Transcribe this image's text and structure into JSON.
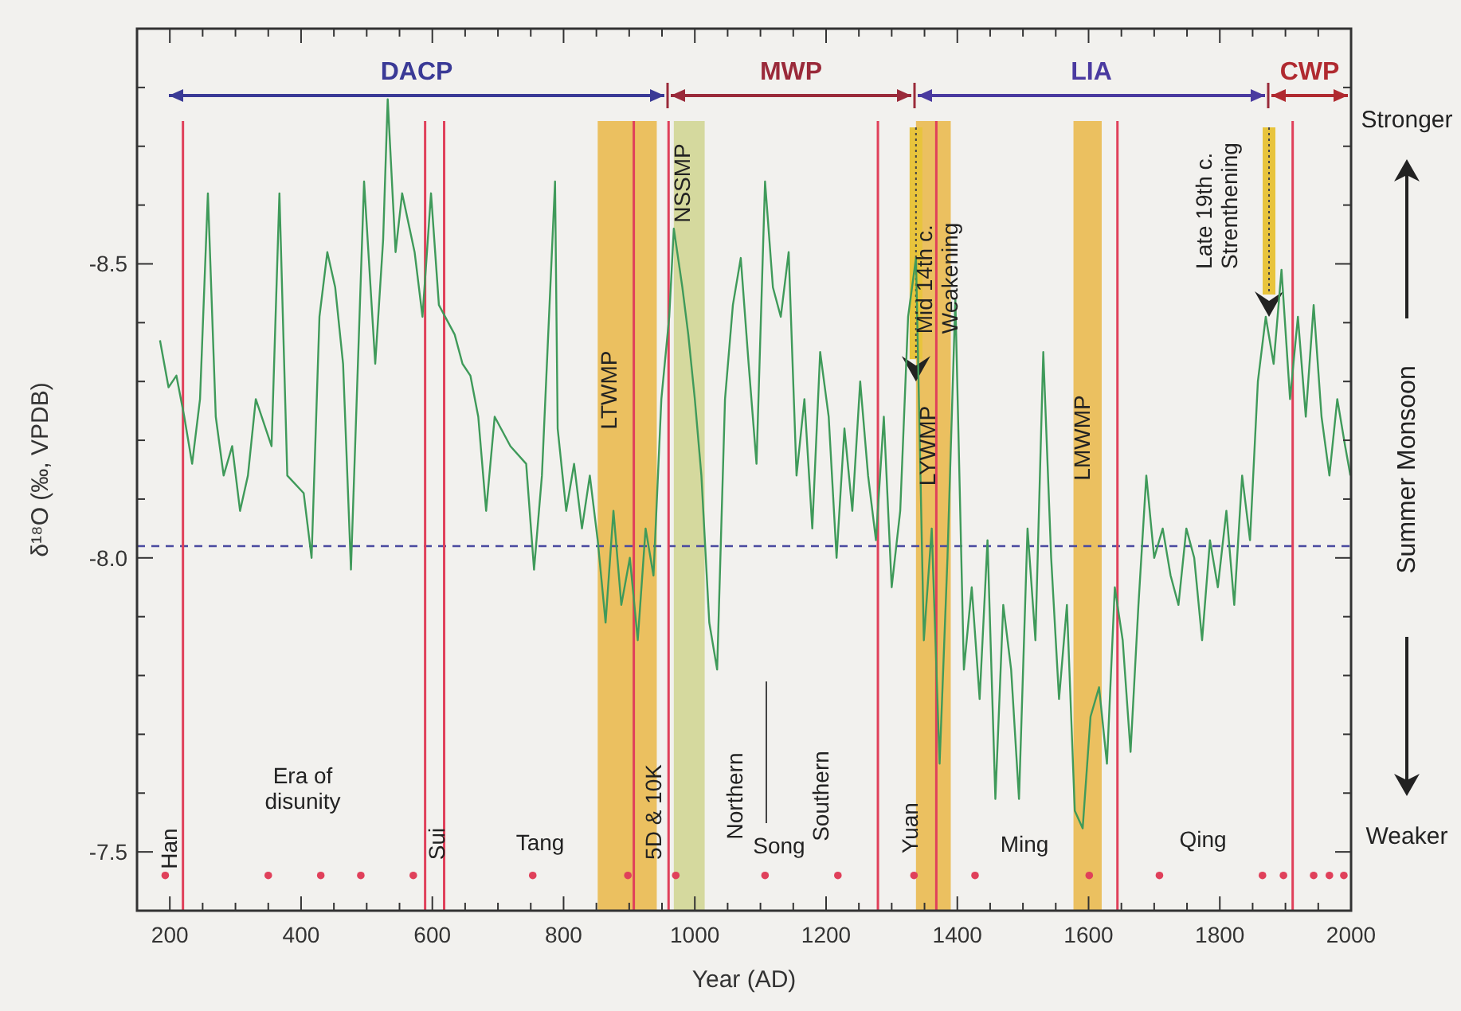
{
  "chart_data": {
    "type": "line",
    "xlabel": "Year (AD)",
    "ylabel": "δ¹⁸O (‰, VPDB)",
    "y2label": "Summer Monsoon",
    "xlim": [
      150,
      2000
    ],
    "ylim": [
      -7.4,
      -8.9
    ],
    "xticks": [
      {
        "value": 150,
        "label": null
      },
      200,
      {
        "value": 250,
        "label": null
      },
      {
        "value": 300,
        "label": null
      },
      {
        "value": 350,
        "label": null
      },
      400,
      {
        "value": 450,
        "label": null
      },
      {
        "value": 500,
        "label": null
      },
      {
        "value": 550,
        "label": null
      },
      600,
      {
        "value": 650,
        "label": null
      },
      {
        "value": 700,
        "label": null
      },
      {
        "value": 750,
        "label": null
      },
      800,
      {
        "value": 850,
        "label": null
      },
      {
        "value": 900,
        "label": null
      },
      {
        "value": 950,
        "label": null
      },
      1000,
      {
        "value": 1050,
        "label": null
      },
      {
        "value": 1100,
        "label": null
      },
      {
        "value": 1150,
        "label": null
      },
      1200,
      {
        "value": 1250,
        "label": null
      },
      {
        "value": 1300,
        "label": null
      },
      {
        "value": 1350,
        "label": null
      },
      1400,
      {
        "value": 1450,
        "label": null
      },
      {
        "value": 1500,
        "label": null
      },
      {
        "value": 1550,
        "label": null
      },
      1600,
      {
        "value": 1650,
        "label": null
      },
      {
        "value": 1700,
        "label": null
      },
      {
        "value": 1750,
        "label": null
      },
      1800,
      {
        "value": 1850,
        "label": null
      },
      {
        "value": 1900,
        "label": null
      },
      {
        "value": 1950,
        "label": null
      },
      2000
    ],
    "yticks": [
      {
        "value": -8.8,
        "label": null
      },
      {
        "value": -8.7,
        "label": null
      },
      {
        "value": -8.6,
        "label": null
      },
      -8.5,
      {
        "value": -8.4,
        "label": null
      },
      {
        "value": -8.3,
        "label": null
      },
      {
        "value": -8.2,
        "label": null
      },
      {
        "value": -8.1,
        "label": null
      },
      {
        "value": -8,
        "label": "-8.0"
      },
      {
        "value": -7.9,
        "label": null
      },
      {
        "value": -7.8,
        "label": null
      },
      {
        "value": -7.7,
        "label": null
      },
      {
        "value": -7.6,
        "label": null
      },
      -7.5,
      {
        "value": -7.4,
        "label": null
      }
    ],
    "series": [
      {
        "color": "#3f9a5a",
        "x": [
          185,
          198,
          210,
          222,
          234,
          246,
          258,
          270,
          282,
          295,
          307,
          319,
          331,
          355,
          367,
          379,
          404,
          416,
          428,
          440,
          452,
          464,
          476,
          496,
          513,
          525,
          532,
          544,
          554,
          573,
          585,
          598,
          610,
          634,
          646,
          658,
          670,
          682,
          695,
          719,
          743,
          755,
          767,
          787,
          791,
          804,
          816,
          828,
          840,
          852,
          864,
          876,
          888,
          901,
          913,
          925,
          937,
          949,
          961,
          968,
          981,
          990,
          1000,
          1010,
          1022,
          1034,
          1046,
          1058,
          1070,
          1082,
          1094,
          1107,
          1119,
          1131,
          1143,
          1155,
          1167,
          1179,
          1191,
          1204,
          1216,
          1228,
          1240,
          1252,
          1264,
          1276,
          1288,
          1300,
          1313,
          1325,
          1337,
          1349,
          1361,
          1373,
          1385,
          1397,
          1410,
          1422,
          1434,
          1446,
          1458,
          1470,
          1482,
          1494,
          1507,
          1519,
          1531,
          1543,
          1555,
          1567,
          1579,
          1591,
          1603,
          1616,
          1628,
          1640,
          1652,
          1664,
          1676,
          1688,
          1700,
          1713,
          1725,
          1737,
          1749,
          1761,
          1773,
          1785,
          1797,
          1810,
          1822,
          1834,
          1846,
          1858,
          1870,
          1882,
          1894,
          1907,
          1919,
          1931,
          1943,
          1955,
          1967,
          1979,
          1991,
          1999
        ],
        "values": [
          -8.37,
          -8.29,
          -8.31,
          -8.24,
          -8.16,
          -8.27,
          -8.62,
          -8.24,
          -8.14,
          -8.19,
          -8.08,
          -8.14,
          -8.27,
          -8.19,
          -8.62,
          -8.14,
          -8.11,
          -8.0,
          -8.41,
          -8.52,
          -8.46,
          -8.33,
          -7.98,
          -8.64,
          -8.33,
          -8.54,
          -8.78,
          -8.52,
          -8.62,
          -8.52,
          -8.41,
          -8.62,
          -8.43,
          -8.38,
          -8.33,
          -8.31,
          -8.24,
          -8.08,
          -8.24,
          -8.19,
          -8.16,
          -7.98,
          -8.14,
          -8.64,
          -8.22,
          -8.08,
          -8.16,
          -8.05,
          -8.14,
          -8.03,
          -7.89,
          -8.08,
          -7.92,
          -8.0,
          -7.86,
          -8.05,
          -7.97,
          -8.27,
          -8.41,
          -8.56,
          -8.46,
          -8.38,
          -8.27,
          -8.14,
          -7.89,
          -7.81,
          -8.27,
          -8.43,
          -8.51,
          -8.33,
          -8.16,
          -8.64,
          -8.46,
          -8.41,
          -8.52,
          -8.14,
          -8.27,
          -8.05,
          -8.35,
          -8.24,
          -8.0,
          -8.22,
          -8.08,
          -8.3,
          -8.14,
          -8.03,
          -8.24,
          -7.95,
          -8.08,
          -8.41,
          -8.51,
          -7.86,
          -8.05,
          -7.65,
          -8.0,
          -8.44,
          -7.81,
          -7.95,
          -7.76,
          -8.03,
          -7.59,
          -7.92,
          -7.81,
          -7.59,
          -8.05,
          -7.86,
          -8.35,
          -8.0,
          -7.76,
          -7.92,
          -7.57,
          -7.54,
          -7.73,
          -7.78,
          -7.65,
          -7.95,
          -7.86,
          -7.67,
          -7.92,
          -8.14,
          -8.0,
          -8.05,
          -7.97,
          -7.92,
          -8.05,
          -8.0,
          -7.86,
          -8.03,
          -7.95,
          -8.08,
          -7.92,
          -8.14,
          -8.03,
          -8.3,
          -8.41,
          -8.33,
          -8.49,
          -8.27,
          -8.41,
          -8.24,
          -8.43,
          -8.24,
          -8.14,
          -8.27,
          -8.19,
          -8.14
        ]
      },
      {
        "type": "scatter",
        "color": "#e0405a",
        "x": [
          193,
          350,
          430,
          491,
          571,
          753,
          898,
          971,
          1107,
          1218,
          1334,
          1427,
          1601,
          1708,
          1865,
          1897,
          1943,
          1967,
          1989
        ],
        "values": [
          -7.46,
          -7.46,
          -7.46,
          -7.46,
          -7.46,
          -7.46,
          -7.46,
          -7.46,
          -7.46,
          -7.46,
          -7.46,
          -7.46,
          -7.46,
          -7.46,
          -7.46,
          -7.46,
          -7.46,
          -7.46,
          -7.46
        ]
      }
    ],
    "ref_lines": [
      {
        "axis": "y",
        "value": -8.02,
        "color": "#4a4aa0",
        "line_style": "dashed"
      },
      {
        "axis": "x",
        "value": 220,
        "color": "#e0405a"
      },
      {
        "axis": "x",
        "value": 589,
        "color": "#e0405a"
      },
      {
        "axis": "x",
        "value": 618,
        "color": "#e0405a"
      },
      {
        "axis": "x",
        "value": 907,
        "color": "#e0405a"
      },
      {
        "axis": "x",
        "value": 960,
        "color": "#e0405a"
      },
      {
        "axis": "x",
        "value": 1279,
        "color": "#e0405a"
      },
      {
        "axis": "x",
        "value": 1368,
        "color": "#e0405a"
      },
      {
        "axis": "x",
        "value": 1644,
        "color": "#e0405a"
      },
      {
        "axis": "x",
        "value": 1911,
        "color": "#e0405a"
      }
    ],
    "bands": [
      {
        "axis": "x",
        "from": 852,
        "to": 942,
        "label": "LTWMP",
        "color": "#e8b43c"
      },
      {
        "axis": "x",
        "from": 968,
        "to": 1015,
        "label": "NSSMP",
        "color": "#cdd38a"
      },
      {
        "axis": "x",
        "from": 1337,
        "to": 1390,
        "label": "LYWMP",
        "color": "#e8b43c"
      },
      {
        "axis": "x",
        "from": 1577,
        "to": 1620,
        "label": "LMWMP",
        "color": "#e8b43c"
      }
    ],
    "annotations": [
      "Han",
      "Era of disunity",
      "Sui",
      "Tang",
      "5D & 10K",
      "Northern",
      "Song",
      "Southern",
      "Yuan",
      "Ming",
      "Qing",
      "DACP",
      "MWP",
      "LIA",
      "CWP",
      "Stronger",
      "Weaker",
      {
        "text": "Mid 14th c. Weakening",
        "x": 1337,
        "y": -8.3
      },
      {
        "text": "Late 19th c. Strenthening",
        "x": 1875,
        "y": -8.41
      }
    ]
  }
}
